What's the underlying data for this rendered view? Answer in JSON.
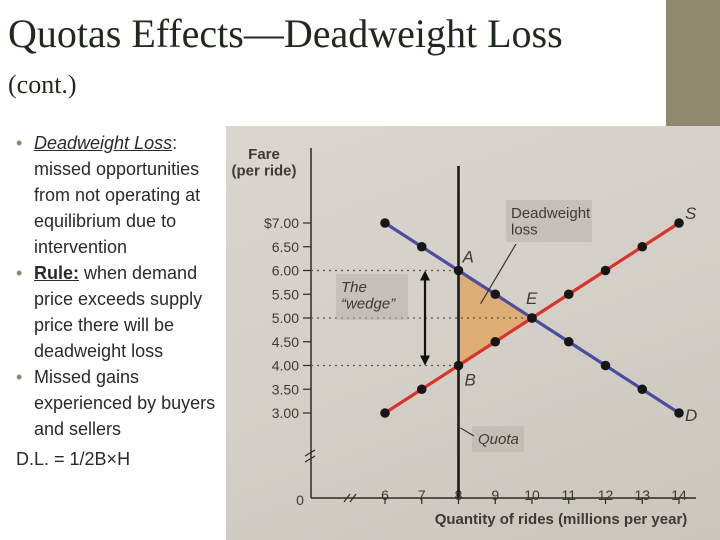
{
  "slide": {
    "title": "Quotas Effects—Deadweight Loss",
    "subtitle": "(cont.)",
    "bullets": [
      {
        "head": "Deadweight Loss",
        "rest": ": missed opportunities from not operating at equilibrium due to intervention"
      },
      {
        "head": "Rule:",
        "rest": " when demand price exceeds supply price there will be deadweight loss"
      },
      {
        "head": "",
        "rest": "Missed gains experienced by buyers and sellers"
      }
    ],
    "formula": "D.L. = 1/2B×H"
  },
  "colors": {
    "supply": "#d9332b",
    "demand": "#4a4ea0",
    "deadweight_fill": "#e0a25a",
    "axis": "#2b2a28",
    "quota_line": "#1a1a1a"
  },
  "chart_data": {
    "type": "line",
    "ylabel": "Fare\n(per ride)",
    "xlabel": "Quantity of rides (millions per year)",
    "x_ticks": [
      "0",
      "6",
      "7",
      "8",
      "9",
      "10",
      "11",
      "12",
      "13",
      "14"
    ],
    "y_ticks": [
      "$7.00",
      "6.50",
      "6.00",
      "5.50",
      "5.00",
      "4.50",
      "4.00",
      "3.50",
      "3.00"
    ],
    "xlim": [
      6,
      14
    ],
    "ylim": [
      3,
      7
    ],
    "series": [
      {
        "name": "S",
        "x": [
          6,
          7,
          8,
          9,
          10,
          11,
          12,
          13,
          14
        ],
        "y": [
          3.0,
          3.5,
          4.0,
          4.5,
          5.0,
          5.5,
          6.0,
          6.5,
          7.0
        ]
      },
      {
        "name": "D",
        "x": [
          6,
          7,
          8,
          9,
          10,
          11,
          12,
          13,
          14
        ],
        "y": [
          7.0,
          6.5,
          6.0,
          5.5,
          5.0,
          4.5,
          4.0,
          3.5,
          3.0
        ]
      }
    ],
    "quota": 8,
    "points": [
      {
        "label": "A",
        "x": 8,
        "y": 6.0
      },
      {
        "label": "E",
        "x": 10,
        "y": 5.0
      },
      {
        "label": "B",
        "x": 8,
        "y": 4.0
      }
    ],
    "annotations": [
      "Deadweight\nloss",
      "The\n“wedge”",
      "Quota"
    ]
  }
}
